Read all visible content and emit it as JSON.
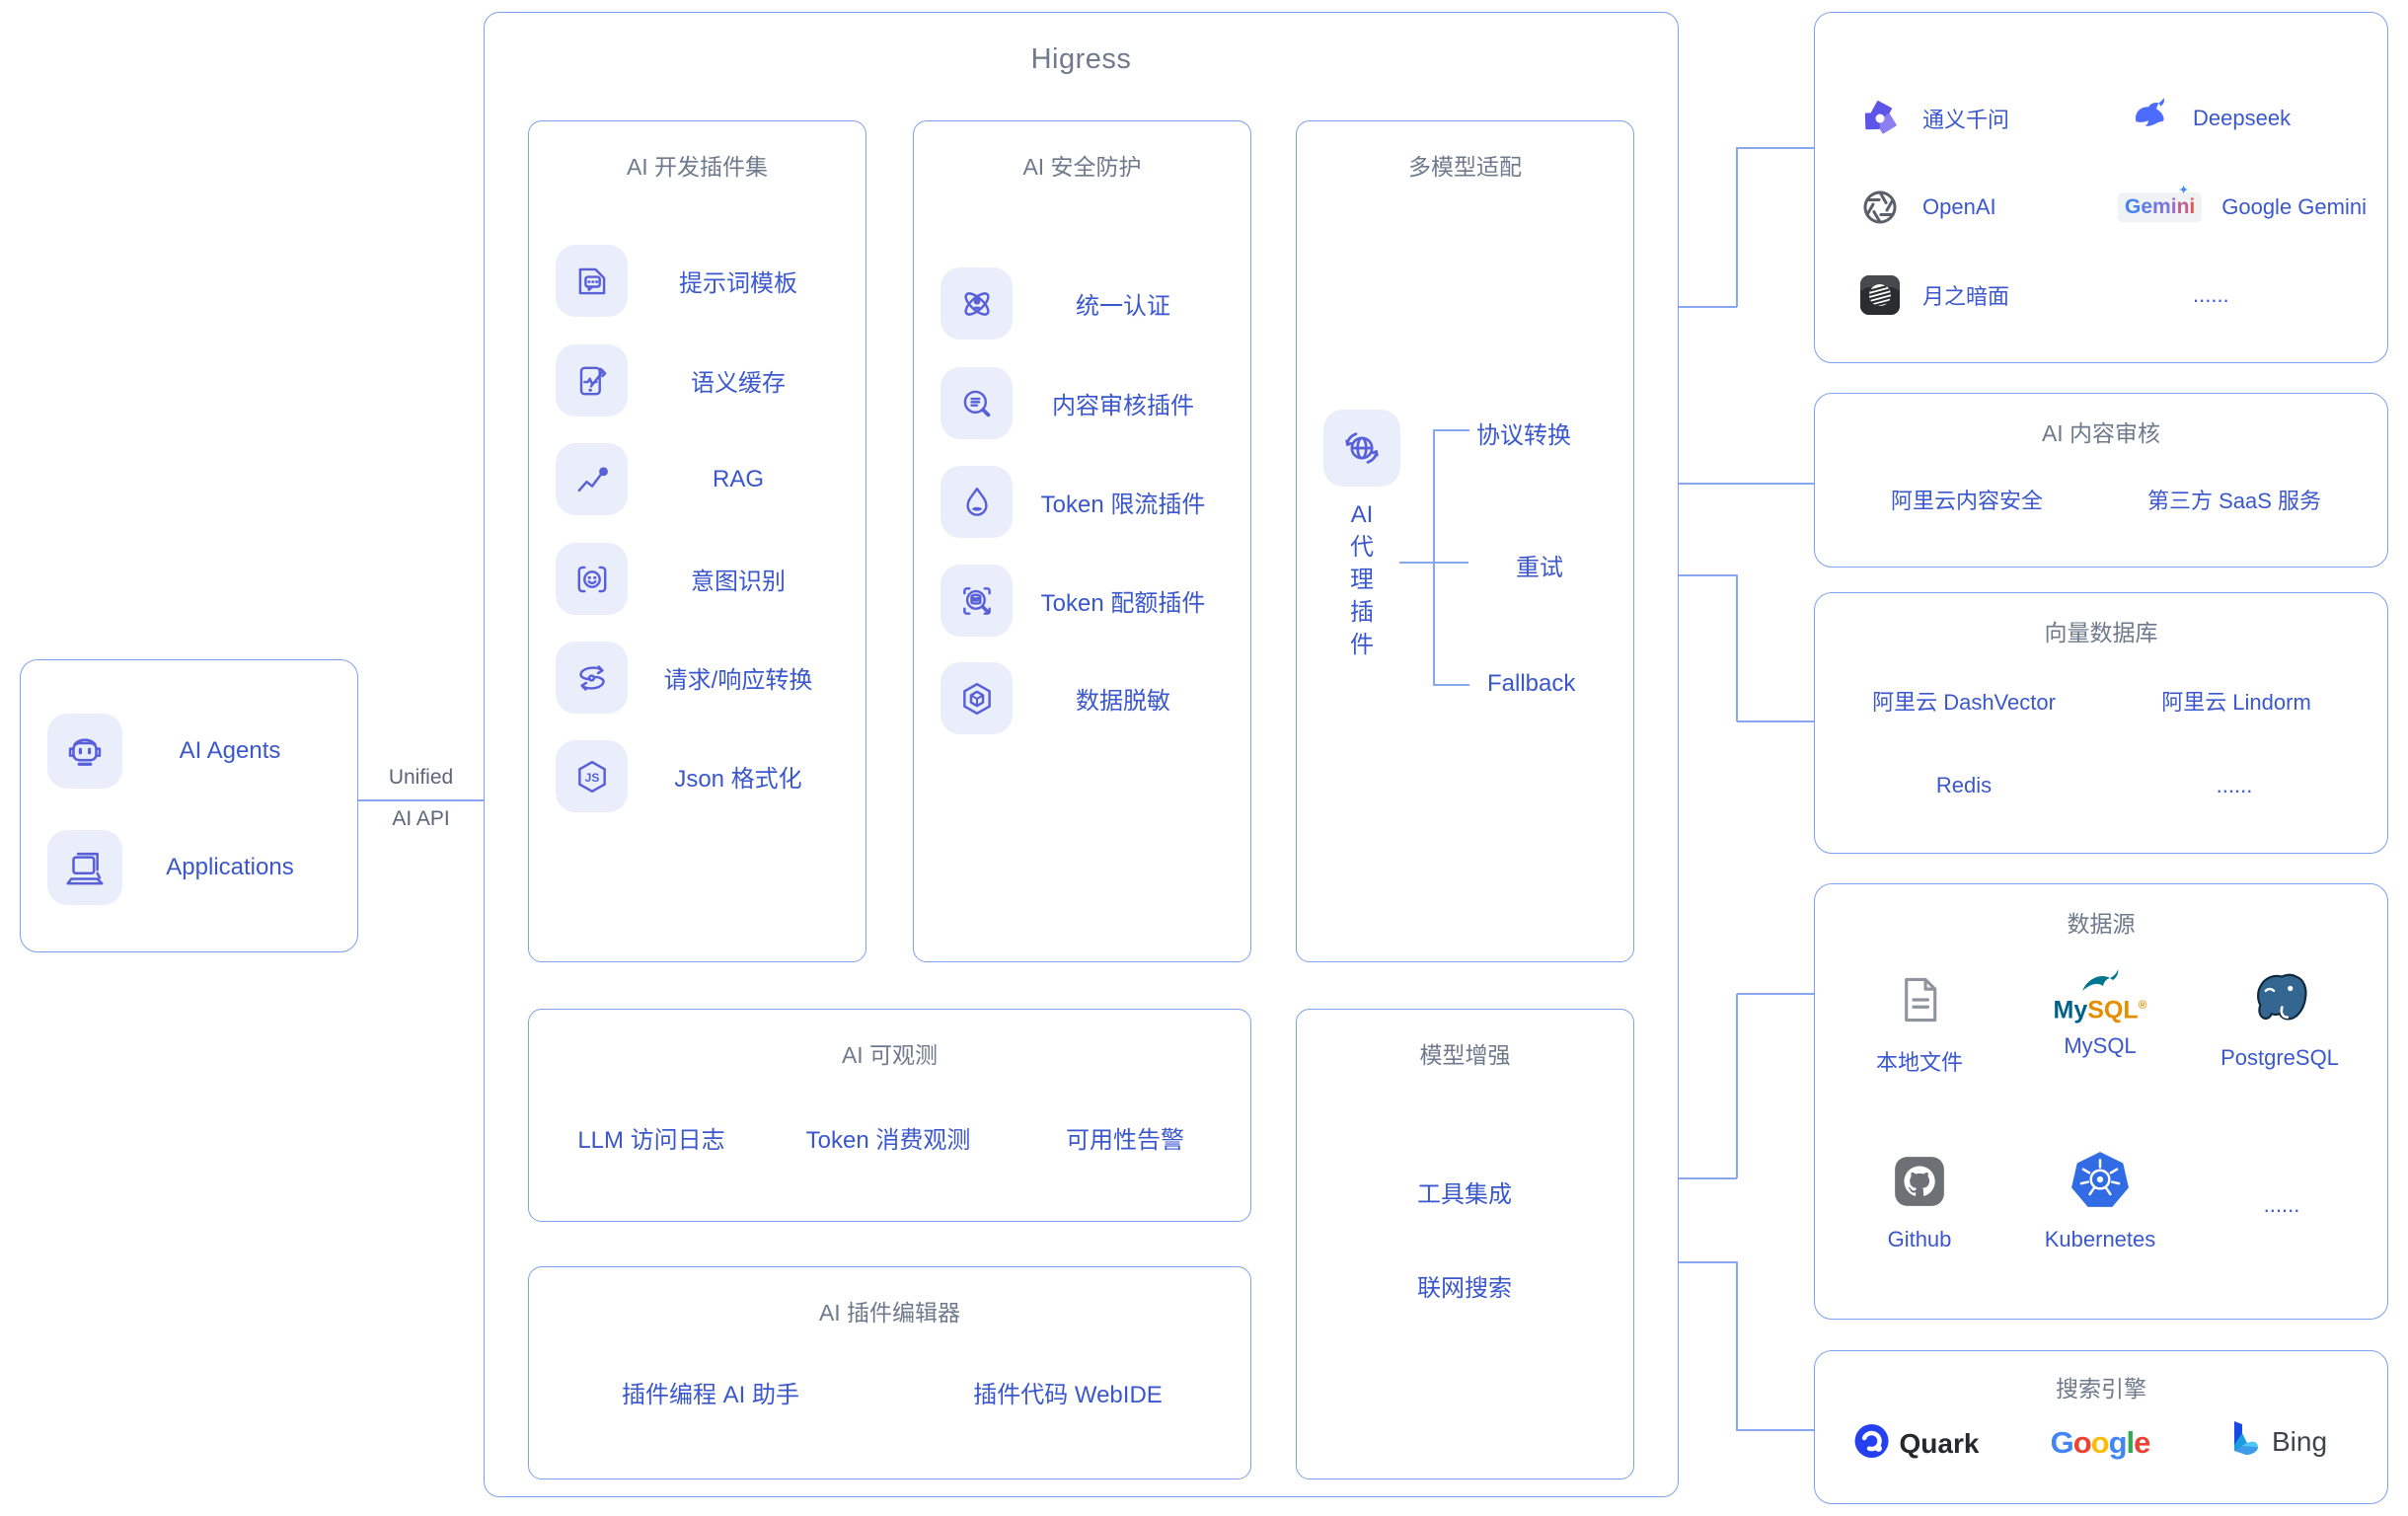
{
  "clients": {
    "items": [
      {
        "label": "AI Agents",
        "icon": "robot-icon"
      },
      {
        "label": "Applications",
        "icon": "laptop-icon"
      }
    ]
  },
  "link": {
    "top_label": "Unified",
    "bottom_label": "AI API"
  },
  "higress": {
    "title": "Higress",
    "dev_plugins": {
      "title": "AI 开发插件集",
      "items": [
        {
          "label": "提示词模板",
          "icon": "prompt-template-icon"
        },
        {
          "label": "语义缓存",
          "icon": "semantic-cache-icon"
        },
        {
          "label": "RAG",
          "icon": "rag-icon"
        },
        {
          "label": "意图识别",
          "icon": "intent-recognition-icon"
        },
        {
          "label": "请求/响应转换",
          "icon": "request-transform-icon"
        },
        {
          "label": "Json 格式化",
          "icon": "json-format-icon"
        }
      ]
    },
    "security": {
      "title": "AI 安全防护",
      "items": [
        {
          "label": "统一认证",
          "icon": "unified-auth-icon"
        },
        {
          "label": "内容审核插件",
          "icon": "content-review-icon"
        },
        {
          "label": "Token 限流插件",
          "icon": "token-ratelimit-icon"
        },
        {
          "label": "Token 配额插件",
          "icon": "token-quota-icon"
        },
        {
          "label": "数据脱敏",
          "icon": "data-mask-icon"
        }
      ]
    },
    "multi_model": {
      "title": "多模型适配",
      "agent": {
        "lines": [
          "AI",
          "代",
          "理",
          "插",
          "件"
        ]
      },
      "branches": [
        {
          "label": "协议转换"
        },
        {
          "label": "重试"
        },
        {
          "label": "Fallback"
        }
      ]
    },
    "observability": {
      "title": "AI 可观测",
      "items": [
        {
          "label": "LLM 访问日志"
        },
        {
          "label": "Token 消费观测"
        },
        {
          "label": "可用性告警"
        }
      ]
    },
    "plugin_editor": {
      "title": "AI 插件编辑器",
      "items": [
        {
          "label": "插件编程 AI 助手"
        },
        {
          "label": "插件代码 WebIDE"
        }
      ]
    },
    "model_enhance": {
      "title": "模型增强",
      "items": [
        {
          "label": "工具集成"
        },
        {
          "label": "联网搜索"
        }
      ]
    }
  },
  "providers": {
    "items": [
      {
        "label": "通义千问",
        "icon": "tongyi-icon"
      },
      {
        "label": "Deepseek",
        "icon": "deepseek-icon"
      },
      {
        "label": "OpenAI",
        "icon": "openai-icon"
      },
      {
        "label": "Google Gemini",
        "icon": "gemini-icon",
        "badge": "Gemini"
      },
      {
        "label": "月之暗面",
        "icon": "moonshot-icon"
      },
      {
        "label": "......"
      }
    ]
  },
  "content_review": {
    "title": "AI 内容审核",
    "items": [
      {
        "label": "阿里云内容安全"
      },
      {
        "label": "第三方 SaaS 服务"
      }
    ]
  },
  "vector_db": {
    "title": "向量数据库",
    "items": [
      {
        "label": "阿里云 DashVector"
      },
      {
        "label": "阿里云 Lindorm"
      },
      {
        "label": "Redis"
      },
      {
        "label": "......"
      }
    ]
  },
  "data_sources": {
    "title": "数据源",
    "items": [
      {
        "label": "本地文件",
        "icon": "local-file-icon"
      },
      {
        "label": "MySQL",
        "icon": "mysql-icon",
        "wordmark_left": "My",
        "wordmark_right": "SQL"
      },
      {
        "label": "PostgreSQL",
        "icon": "postgresql-icon"
      },
      {
        "label": "Github",
        "icon": "github-icon"
      },
      {
        "label": "Kubernetes",
        "icon": "kubernetes-icon"
      },
      {
        "label": "......"
      }
    ]
  },
  "search_engines": {
    "title": "搜索引擎",
    "items": [
      {
        "label": "Quark",
        "icon": "quark-icon"
      },
      {
        "label": "Google",
        "icon": "google-logo"
      },
      {
        "label": "Bing",
        "icon": "bing-icon"
      }
    ]
  },
  "colors": {
    "border": "#7fa0ef",
    "connector": "#89a7f1",
    "title_gray": "#6e7a8c",
    "item_blue": "#3a57cd",
    "icon_indigo": "#575fd9",
    "tile_bg": "#eaeefb",
    "google_palette": [
      "#4285F4",
      "#EA4335",
      "#FBBC05",
      "#4285F4",
      "#34A853",
      "#EA4335"
    ],
    "gemini_palette": [
      "#4683f1",
      "#5f7de8",
      "#7a76dd",
      "#9a6cc6",
      "#c05f93",
      "#dd5850"
    ]
  }
}
